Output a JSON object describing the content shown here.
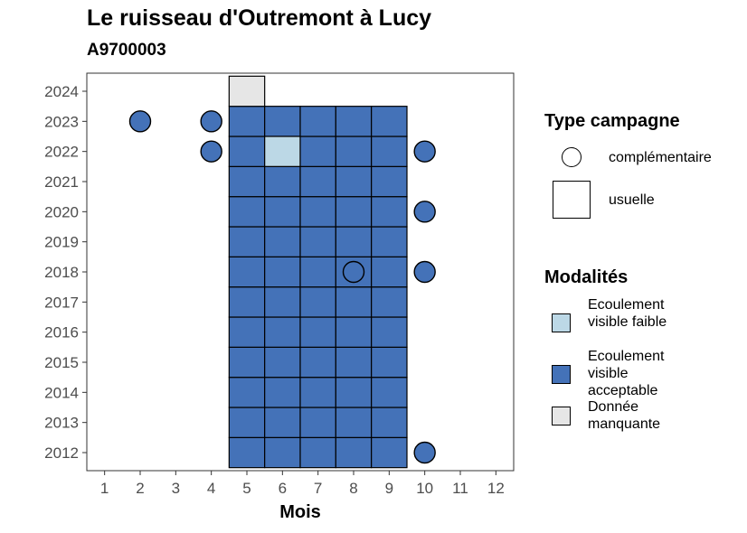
{
  "chart_data": {
    "type": "heatmap",
    "title": "Le ruisseau d'Outremont à Lucy",
    "subtitle": "A9700003",
    "xlabel": "Mois",
    "ylabel": "",
    "x_ticks": [
      1,
      2,
      3,
      4,
      5,
      6,
      7,
      8,
      9,
      10,
      11,
      12
    ],
    "y_ticks": [
      2012,
      2013,
      2014,
      2015,
      2016,
      2017,
      2018,
      2019,
      2020,
      2021,
      2022,
      2023,
      2024
    ],
    "xlim": [
      0.5,
      12.5
    ],
    "ylim": [
      2011.4,
      2024.6
    ],
    "grid": false,
    "colors": {
      "Ecoulement visible faible": "#bcd8e6",
      "Ecoulement visible acceptable": "#4472b8",
      "Donnée manquante": "#e6e6e6"
    },
    "usuelle_cells": [
      {
        "month": 5,
        "years": [
          2012,
          2013,
          2014,
          2015,
          2016,
          2017,
          2018,
          2019,
          2020,
          2021,
          2022,
          2023
        ],
        "modalite": "Ecoulement visible acceptable"
      },
      {
        "month": 6,
        "years": [
          2012,
          2013,
          2014,
          2015,
          2016,
          2017,
          2018,
          2019,
          2020,
          2021,
          2023
        ],
        "modalite": "Ecoulement visible acceptable"
      },
      {
        "month": 6,
        "years": [
          2022
        ],
        "modalite": "Ecoulement visible faible"
      },
      {
        "month": 7,
        "years": [
          2012,
          2013,
          2014,
          2015,
          2016,
          2017,
          2018,
          2019,
          2020,
          2021,
          2022,
          2023
        ],
        "modalite": "Ecoulement visible acceptable"
      },
      {
        "month": 8,
        "years": [
          2012,
          2013,
          2014,
          2015,
          2016,
          2017,
          2018,
          2019,
          2020,
          2021,
          2022,
          2023
        ],
        "modalite": "Ecoulement visible acceptable"
      },
      {
        "month": 9,
        "years": [
          2012,
          2013,
          2014,
          2015,
          2016,
          2017,
          2018,
          2019,
          2020,
          2021,
          2022,
          2023
        ],
        "modalite": "Ecoulement visible acceptable"
      },
      {
        "month": 5,
        "years": [
          2024
        ],
        "modalite": "Donnée manquante"
      }
    ],
    "complementaire_points": [
      {
        "month": 2,
        "year": 2023,
        "modalite": "Ecoulement visible acceptable"
      },
      {
        "month": 4,
        "year": 2023,
        "modalite": "Ecoulement visible acceptable"
      },
      {
        "month": 4,
        "year": 2022,
        "modalite": "Ecoulement visible acceptable"
      },
      {
        "month": 10,
        "year": 2022,
        "modalite": "Ecoulement visible acceptable"
      },
      {
        "month": 10,
        "year": 2020,
        "modalite": "Ecoulement visible acceptable"
      },
      {
        "month": 8,
        "year": 2018,
        "modalite": "Ecoulement visible acceptable"
      },
      {
        "month": 10,
        "year": 2018,
        "modalite": "Ecoulement visible acceptable"
      },
      {
        "month": 10,
        "year": 2012,
        "modalite": "Ecoulement visible acceptable"
      }
    ]
  },
  "legend": {
    "type_title": "Type campagne",
    "type_items": [
      "complémentaire",
      "usuelle"
    ],
    "modalites_title": "Modalités",
    "modalites_items": [
      "Ecoulement visible faible",
      "Ecoulement visible acceptable",
      "Donnée manquante"
    ],
    "modalites_colors": [
      "#bcd8e6",
      "#4472b8",
      "#e6e6e6"
    ]
  }
}
